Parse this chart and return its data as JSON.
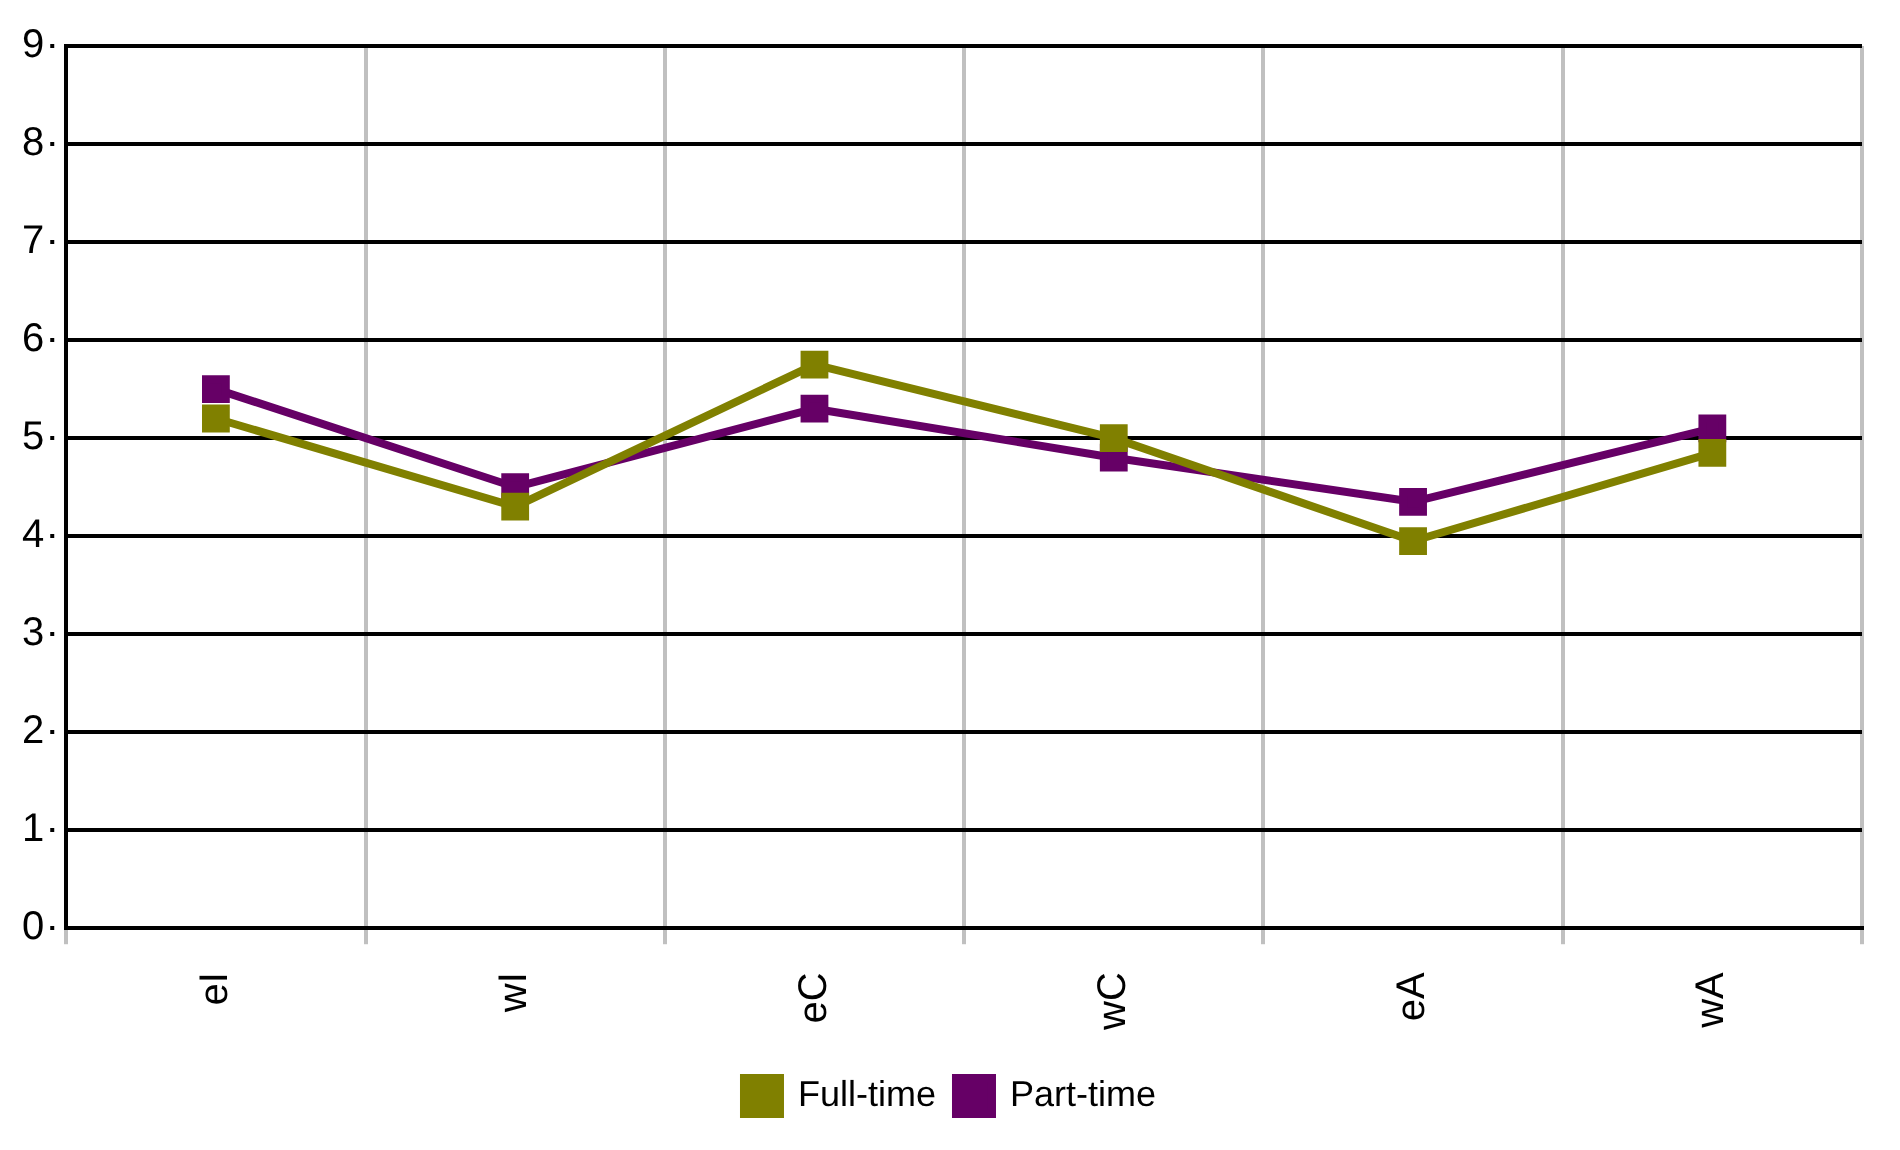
{
  "chart_data": {
    "type": "line",
    "categories": [
      "eI",
      "wI",
      "eC",
      "wC",
      "eA",
      "wA"
    ],
    "series": [
      {
        "name": "Full-time",
        "color": "#808000",
        "values": [
          5.2,
          4.3,
          5.75,
          5.0,
          3.95,
          4.85
        ]
      },
      {
        "name": "Part-time",
        "color": "#660066",
        "values": [
          5.5,
          4.5,
          5.3,
          4.8,
          4.35,
          5.1
        ]
      }
    ],
    "ylim": [
      0,
      9
    ],
    "yticks": [
      0,
      1,
      2,
      3,
      4,
      5,
      6,
      7,
      8,
      9
    ],
    "grid": true,
    "legend": "bottom",
    "marker": "square",
    "line_style": "solid"
  }
}
